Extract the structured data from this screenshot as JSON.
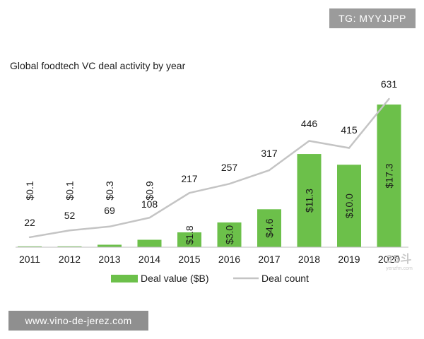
{
  "badge": {
    "text": "TG: MYYJJPP"
  },
  "watermark": {
    "url_text": "www.vino-de-jerez.com",
    "logo_text": "35斗",
    "logo_subtext": "yenzfm.com"
  },
  "colors": {
    "bar": "#6cc04a",
    "line": "#c4c4c4",
    "text": "#1a1a1a",
    "axis": "#bdbdbd"
  },
  "chart_data": {
    "type": "bar",
    "title": "Global foodtech VC deal activity by year",
    "categories": [
      "2011",
      "2012",
      "2013",
      "2014",
      "2015",
      "2016",
      "2017",
      "2018",
      "2019",
      "2020"
    ],
    "series": [
      {
        "name": "Deal value ($B)",
        "type": "bar",
        "values": [
          0.1,
          0.1,
          0.3,
          0.9,
          1.8,
          3.0,
          4.6,
          11.3,
          10.0,
          17.3
        ],
        "labels": [
          "$0.1",
          "$0.1",
          "$0.3",
          "$0.9",
          "$1.8",
          "$3.0",
          "$4.6",
          "$11.3",
          "$10.0",
          "$17.3"
        ]
      },
      {
        "name": "Deal count",
        "type": "line",
        "values": [
          22,
          52,
          69,
          108,
          217,
          257,
          317,
          446,
          415,
          631
        ],
        "labels": [
          "22",
          "52",
          "69",
          "108",
          "217",
          "257",
          "317",
          "446",
          "415",
          "631"
        ]
      }
    ],
    "legend": {
      "position": "bottom"
    },
    "bar_ylim": [
      0,
      17.3
    ],
    "line_ylim": [
      0,
      631
    ]
  }
}
